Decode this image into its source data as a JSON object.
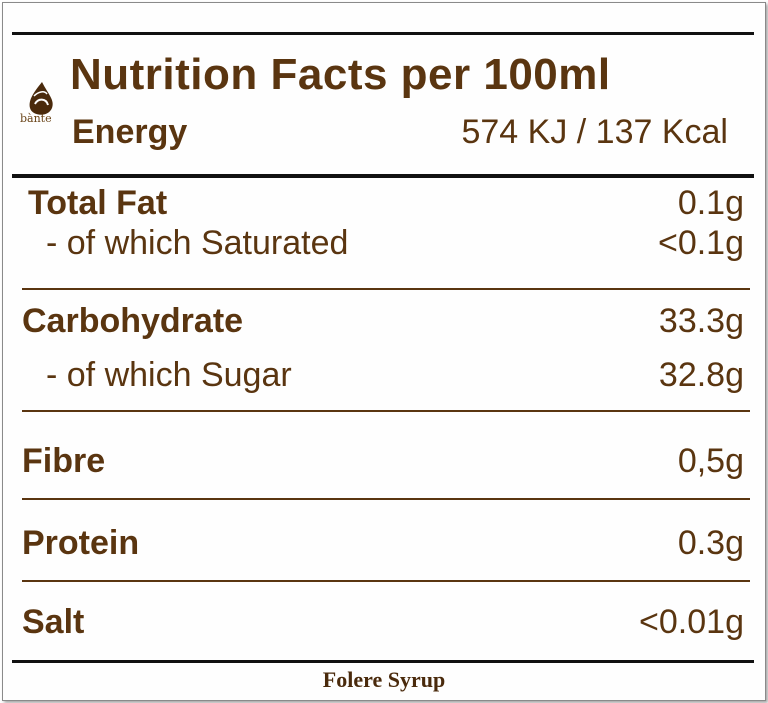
{
  "logo": {
    "icon": "drop-logo-icon",
    "text": "bànte"
  },
  "header": {
    "title": "Nutrition  Facts per 100ml",
    "energy_label": "Energy",
    "energy_value": "574 KJ / 137 Kcal"
  },
  "rows": [
    {
      "label": "Total Fat",
      "value": "0.1g"
    },
    {
      "label": "- of which Saturated",
      "value": "<0.1g"
    },
    {
      "label": "Carbohydrate",
      "value": "33.3g"
    },
    {
      "label": "- of which Sugar",
      "value": "32.8g"
    },
    {
      "label": "Fibre",
      "value": "0,5g"
    },
    {
      "label": "Protein",
      "value": "0.3g"
    },
    {
      "label": "Salt",
      "value": "<0.01g"
    }
  ],
  "footer": {
    "product_name": "Folere Syrup"
  },
  "colors": {
    "text": "#5a3510",
    "rule": "#111111",
    "background": "#fefefe"
  }
}
